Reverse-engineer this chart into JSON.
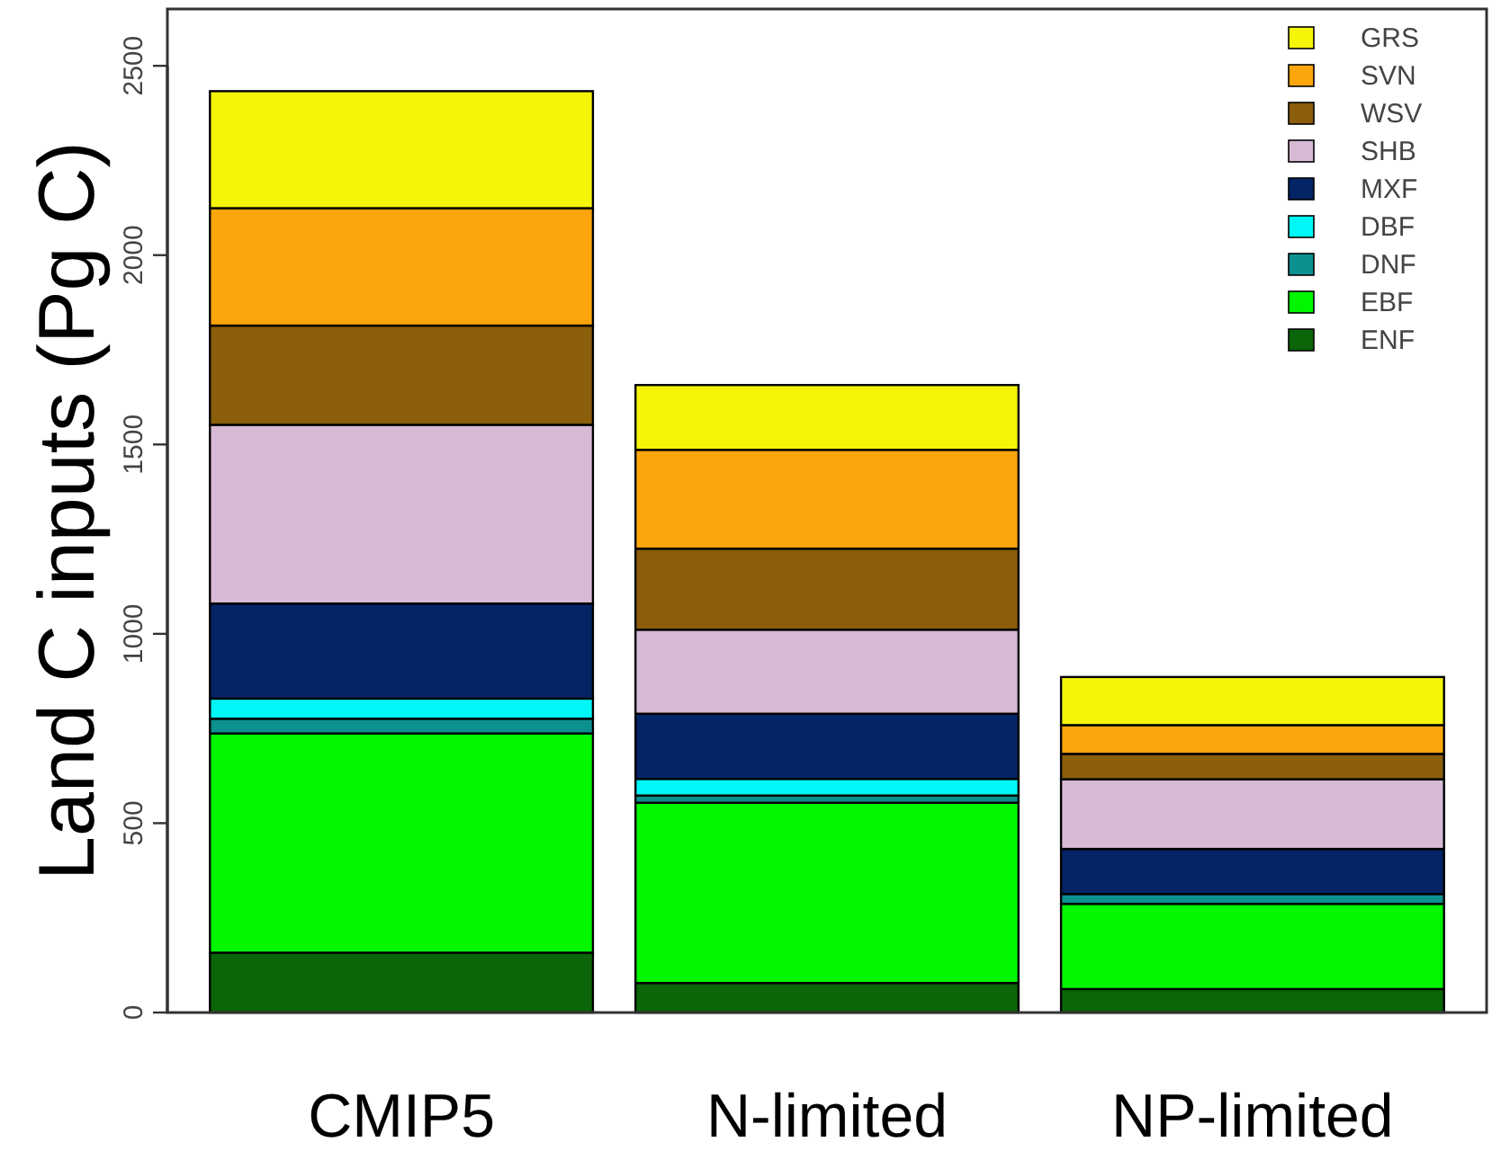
{
  "chart_data": {
    "type": "bar",
    "stacked": true,
    "ylabel": "Land C inputs (Pg C)",
    "categories": [
      "CMIP5",
      "N-limited",
      "NP-limited"
    ],
    "series": [
      {
        "name": "ENF",
        "color": "#0a6608",
        "values": [
          158,
          78,
          62
        ]
      },
      {
        "name": "EBF",
        "color": "#00f700",
        "values": [
          579,
          476,
          225
        ]
      },
      {
        "name": "DNF",
        "color": "#0c9090",
        "values": [
          39,
          19,
          26
        ]
      },
      {
        "name": "DBF",
        "color": "#00f7f7",
        "values": [
          53,
          44,
          null
        ]
      },
      {
        "name": "MXF",
        "color": "#032465",
        "values": [
          251,
          172,
          119
        ]
      },
      {
        "name": "SHB",
        "color": "#d7bad5",
        "values": [
          472,
          222,
          184
        ]
      },
      {
        "name": "WSV",
        "color": "#8b5e0b",
        "values": [
          262,
          214,
          67
        ]
      },
      {
        "name": "SVN",
        "color": "#fca50c",
        "values": [
          310,
          261,
          76
        ]
      },
      {
        "name": "GRS",
        "color": "#f5f50a",
        "values": [
          309,
          171,
          127
        ]
      }
    ],
    "ylim": [
      0,
      2650
    ],
    "yticks": [
      0,
      500,
      1000,
      1500,
      2000,
      2500
    ],
    "grid": false,
    "legend": "top right"
  }
}
